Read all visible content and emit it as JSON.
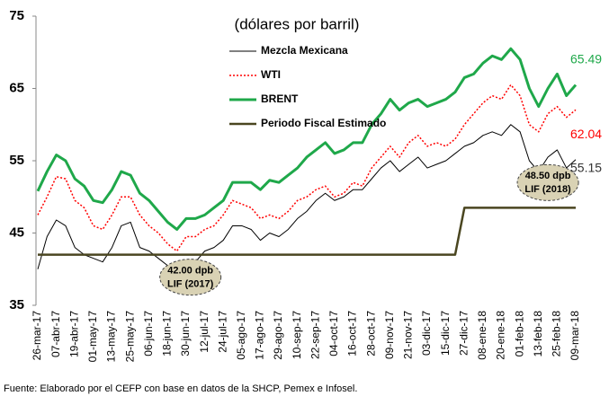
{
  "chart_data": {
    "type": "line",
    "subtitle": "(dólares por barril)",
    "source": "Fuente: Elaborado por el CEFP con base en datos de la SHCP, Pemex e Infosel.",
    "categories": [
      "26-mar-17",
      null,
      "07-abr-17",
      null,
      "19-abr-17",
      null,
      "01-may-17",
      null,
      "13-may-17",
      null,
      "25-may-17",
      null,
      "06-jun-17",
      null,
      "18-jun-17",
      null,
      "30-jun-17",
      null,
      "12-jul-17",
      null,
      "24-jul-17",
      null,
      "05-ago-17",
      null,
      "17-ago-17",
      null,
      "29-ago-17",
      null,
      "10-sep-17",
      null,
      "22-sep-17",
      null,
      "04-oct-17",
      null,
      "16-oct-17",
      null,
      "28-oct-17",
      null,
      "09-nov-17",
      null,
      "21-nov-17",
      null,
      "03-dic-17",
      null,
      "15-dic-17",
      null,
      "27-dic-17",
      null,
      "08-ene-18",
      null,
      "20-ene-18",
      null,
      "01-feb-18",
      null,
      "13-feb-18",
      null,
      "25-feb-18",
      null,
      "09-mar-18"
    ],
    "series": [
      {
        "name": "Mezcla Mexicana",
        "color": "#000000",
        "width": 1,
        "dash": false,
        "values": [
          40.0,
          44.5,
          46.8,
          46.0,
          43.0,
          42.0,
          41.5,
          41.0,
          43.0,
          46.0,
          46.5,
          43.0,
          42.5,
          41.5,
          40.5,
          39.5,
          40.5,
          41.0,
          42.5,
          43.0,
          44.0,
          46.0,
          46.0,
          45.5,
          44.0,
          45.0,
          44.5,
          45.5,
          47.0,
          48.0,
          49.5,
          50.5,
          49.5,
          50.0,
          51.0,
          51.0,
          52.5,
          54.0,
          55.0,
          53.5,
          54.5,
          55.5,
          54.0,
          54.5,
          55.0,
          56.0,
          57.0,
          57.5,
          58.5,
          59.0,
          58.5,
          60.0,
          59.0,
          55.0,
          53.5,
          55.5,
          56.5,
          54.0,
          55.15
        ]
      },
      {
        "name": "WTI",
        "color": "#ff0000",
        "width": 1.5,
        "dash": true,
        "values": [
          47.5,
          50.0,
          52.8,
          52.5,
          49.5,
          48.5,
          46.0,
          45.5,
          47.5,
          50.0,
          50.0,
          47.5,
          46.0,
          45.0,
          43.5,
          42.5,
          44.5,
          44.5,
          45.5,
          46.0,
          47.5,
          49.5,
          49.0,
          48.5,
          47.0,
          47.5,
          47.0,
          48.0,
          49.5,
          50.0,
          51.0,
          51.5,
          50.0,
          50.5,
          52.0,
          51.5,
          54.0,
          55.5,
          57.0,
          55.5,
          57.5,
          58.5,
          57.0,
          57.5,
          57.0,
          58.0,
          60.0,
          61.5,
          63.0,
          64.0,
          63.5,
          65.5,
          64.0,
          60.0,
          59.0,
          61.5,
          62.5,
          61.0,
          62.04
        ]
      },
      {
        "name": "BRENT",
        "color": "#1fa84a",
        "width": 3,
        "dash": false,
        "values": [
          50.8,
          53.5,
          55.8,
          55.0,
          52.5,
          51.5,
          49.5,
          49.2,
          51.0,
          53.5,
          53.0,
          50.5,
          49.5,
          48.0,
          46.5,
          45.5,
          47.0,
          47.0,
          47.5,
          48.5,
          49.5,
          52.0,
          52.0,
          52.0,
          51.0,
          52.3,
          52.0,
          53.0,
          54.0,
          55.5,
          56.5,
          57.5,
          56.0,
          56.5,
          57.5,
          57.5,
          60.0,
          61.5,
          63.5,
          62.0,
          63.0,
          63.5,
          62.5,
          63.0,
          63.5,
          64.5,
          66.5,
          67.0,
          68.5,
          69.5,
          69.0,
          70.5,
          69.0,
          65.0,
          62.5,
          65.0,
          67.0,
          64.0,
          65.49
        ]
      },
      {
        "name": "Periodo Fiscal Estimado",
        "color": "#4a4620",
        "width": 2.5,
        "dash": false,
        "values": [
          42,
          42,
          42,
          42,
          42,
          42,
          42,
          42,
          42,
          42,
          42,
          42,
          42,
          42,
          42,
          42,
          42,
          42,
          42,
          42,
          42,
          42,
          42,
          42,
          42,
          42,
          42,
          42,
          42,
          42,
          42,
          42,
          42,
          42,
          42,
          42,
          42,
          42,
          42,
          42,
          42,
          42,
          42,
          42,
          42,
          42,
          48.5,
          48.5,
          48.5,
          48.5,
          48.5,
          48.5,
          48.5,
          48.5,
          48.5,
          48.5,
          48.5,
          48.5,
          48.5
        ]
      }
    ],
    "end_labels": [
      {
        "series": 2,
        "text": "65.49",
        "color": "#1fa84a"
      },
      {
        "series": 1,
        "text": "62.04",
        "color": "#ff0000"
      },
      {
        "series": 0,
        "text": "55.15",
        "color": "#333333"
      }
    ],
    "callouts": [
      {
        "lines": [
          "42.00 dpb",
          "LIF (2017)"
        ],
        "index": 15
      },
      {
        "lines": [
          "48.50 dpb",
          "LIF (2018)"
        ],
        "index": 55
      }
    ],
    "ylim": [
      35,
      75
    ],
    "yticks": [
      35,
      45,
      55,
      65,
      75
    ],
    "grid": false
  }
}
